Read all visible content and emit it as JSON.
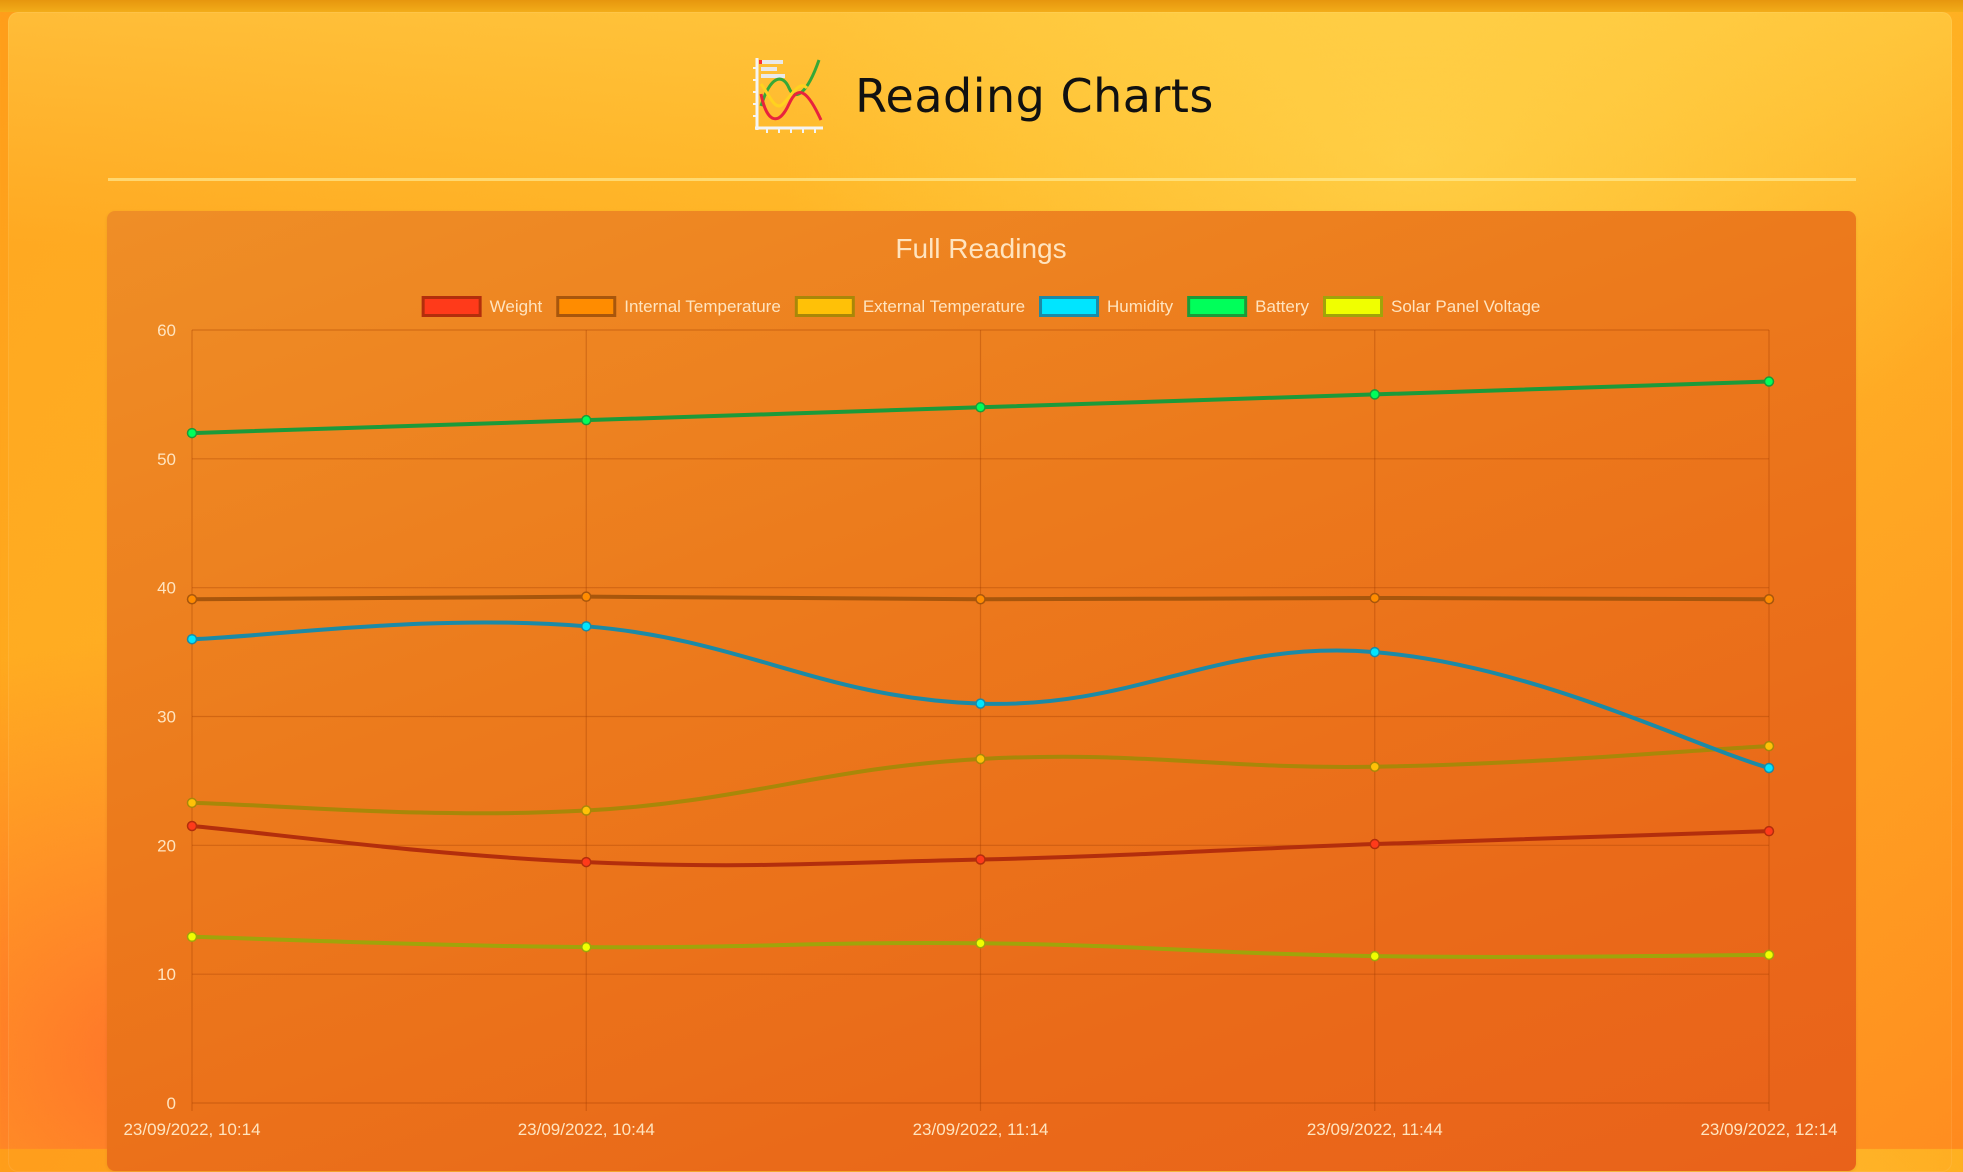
{
  "header": {
    "title": "Reading Charts",
    "logo_icon": "line-chart-icon"
  },
  "chart_data": {
    "type": "line",
    "title": "Full Readings",
    "xlabel": "",
    "ylabel": "",
    "ylim": [
      0,
      60
    ],
    "y_ticks": [
      "0",
      "10",
      "20",
      "30",
      "40",
      "50",
      "60"
    ],
    "categories": [
      "23/09/2022, 10:14",
      "23/09/2022, 10:44",
      "23/09/2022, 11:14",
      "23/09/2022, 11:44",
      "23/09/2022, 12:14"
    ],
    "grid": true,
    "legend_position": "top",
    "series": [
      {
        "name": "Weight",
        "values": [
          21.5,
          18.7,
          18.9,
          20.1,
          21.1
        ],
        "color": "#b32e0c",
        "fill": "#ff3a1a",
        "point": "#ff3a1a"
      },
      {
        "name": "Internal Temperature",
        "values": [
          39.1,
          39.3,
          39.1,
          39.2,
          39.1
        ],
        "color": "#a8560c",
        "fill": "#ff8c00",
        "point": "#ff8c00"
      },
      {
        "name": "External Temperature",
        "values": [
          23.3,
          22.7,
          26.7,
          26.1,
          27.7
        ],
        "color": "#a98708",
        "fill": "#ffc107",
        "point": "#ffc107"
      },
      {
        "name": "Humidity",
        "values": [
          36.0,
          37.0,
          31.0,
          35.0,
          26.0
        ],
        "color": "#1c8aa6",
        "fill": "#00e5ff",
        "point": "#00e5ff"
      },
      {
        "name": "Battery",
        "values": [
          52.0,
          53.0,
          54.0,
          55.0,
          56.0
        ],
        "color": "#1c9a3a",
        "fill": "#00ff5a",
        "point": "#00ff5a"
      },
      {
        "name": "Solar Panel Voltage",
        "values": [
          12.9,
          12.1,
          12.4,
          11.4,
          11.5
        ],
        "color": "#a0a40a",
        "fill": "#f0ff00",
        "point": "#f0ff00"
      }
    ]
  }
}
